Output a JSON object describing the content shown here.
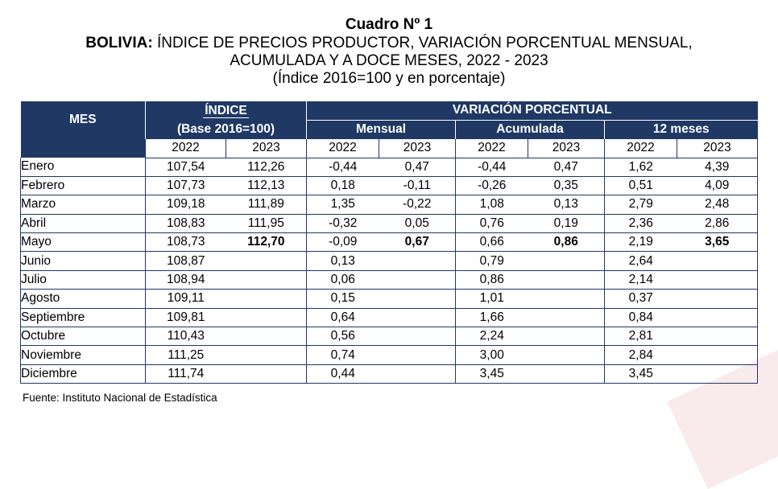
{
  "title": {
    "line1": "Cuadro Nº 1",
    "country": "BOLIVIA:",
    "line2": "ÍNDICE DE PRECIOS PRODUCTOR, VARIACIÓN PORCENTUAL MENSUAL,",
    "line3": "ACUMULADA Y A DOCE MESES, 2022 - 2023",
    "line4": "(Índice 2016=100 y en porcentaje)"
  },
  "header": {
    "mes": "MES",
    "indice": "ÍNDICE",
    "indice_base": "(Base 2016=100)",
    "variacion": "VARIACIÓN PORCENTUAL",
    "mensual": "Mensual",
    "acumulada": "Acumulada",
    "doce": "12 meses",
    "years": [
      "2022",
      "2023",
      "2022",
      "2023",
      "2022",
      "2023",
      "2022",
      "2023"
    ]
  },
  "rows": [
    {
      "mes": "Enero",
      "v": [
        "107,54",
        "112,26",
        "-0,44",
        "0,47",
        "-0,44",
        "0,47",
        "1,62",
        "4,39"
      ]
    },
    {
      "mes": "Febrero",
      "v": [
        "107,73",
        "112,13",
        "0,18",
        "-0,11",
        "-0,26",
        "0,35",
        "0,51",
        "4,09"
      ]
    },
    {
      "mes": "Marzo",
      "v": [
        "109,18",
        "111,89",
        "1,35",
        "-0,22",
        "1,08",
        "0,13",
        "2,79",
        "2,48"
      ]
    },
    {
      "mes": "Abril",
      "v": [
        "108,83",
        "111,95",
        "-0,32",
        "0,05",
        "0,76",
        "0,19",
        "2,36",
        "2,86"
      ]
    },
    {
      "mes": "Mayo",
      "v": [
        "108,73",
        "112,70",
        "-0,09",
        "0,67",
        "0,66",
        "0,86",
        "2,19",
        "3,65"
      ]
    },
    {
      "mes": "Junio",
      "v": [
        "108,87",
        "",
        "0,13",
        "",
        "0,79",
        "",
        "2,64",
        ""
      ]
    },
    {
      "mes": "Julio",
      "v": [
        "108,94",
        "",
        "0,06",
        "",
        "0,86",
        "",
        "2,14",
        ""
      ]
    },
    {
      "mes": "Agosto",
      "v": [
        "109,11",
        "",
        "0,15",
        "",
        "1,01",
        "",
        "0,37",
        ""
      ]
    },
    {
      "mes": "Septiembre",
      "v": [
        "109,81",
        "",
        "0,64",
        "",
        "1,66",
        "",
        "0,84",
        ""
      ]
    },
    {
      "mes": "Octubre",
      "v": [
        "110,43",
        "",
        "0,56",
        "",
        "2,24",
        "",
        "2,81",
        ""
      ]
    },
    {
      "mes": "Noviembre",
      "v": [
        "111,25",
        "",
        "0,74",
        "",
        "3,00",
        "",
        "2,84",
        ""
      ]
    },
    {
      "mes": "Diciembre",
      "v": [
        "111,74",
        "",
        "0,44",
        "",
        "3,45",
        "",
        "3,45",
        ""
      ]
    }
  ],
  "source": "Fuente: Instituto Nacional de Estadística",
  "colors": {
    "header_bg": "#1f3864",
    "header_text": "#ffffff"
  }
}
